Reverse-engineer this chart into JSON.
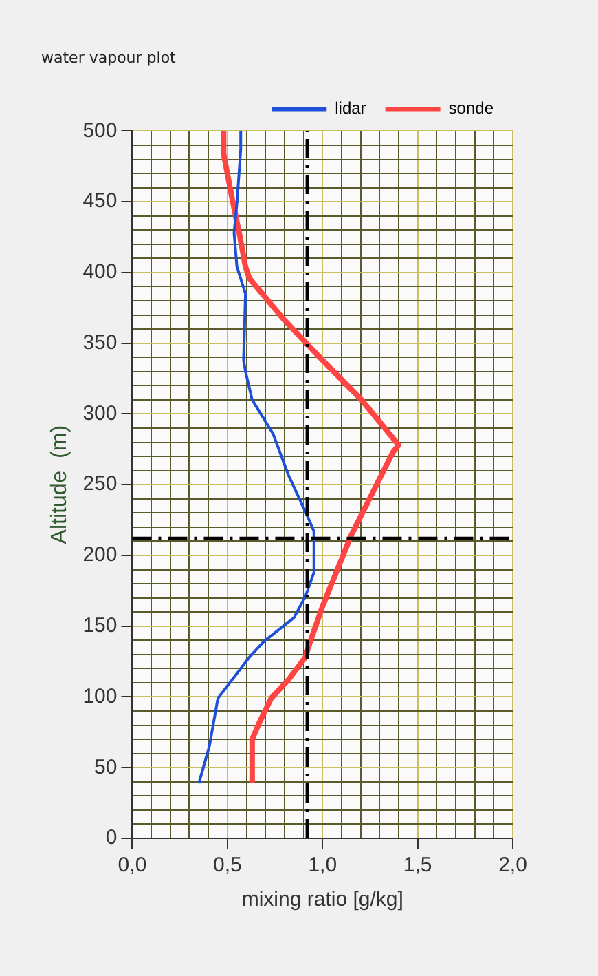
{
  "chart_data": {
    "type": "line",
    "title": "water vapour plot",
    "xlabel": "mixing ratio [g/kg]",
    "ylabel": "Altitude  (m)",
    "series": [
      {
        "name": "lidar",
        "color": "#1e4fd8",
        "x": [
          0.35,
          0.405,
          0.45,
          0.615,
          0.69,
          0.85,
          0.91,
          0.955,
          0.955,
          0.92,
          0.82,
          0.74,
          0.63,
          0.595,
          0.585,
          0.595,
          0.55,
          0.535,
          0.55,
          0.57,
          0.57
        ],
        "values": [
          39,
          65,
          99,
          128,
          139,
          156,
          171,
          188,
          217,
          228,
          257,
          286,
          310,
          330,
          338,
          385,
          404,
          428,
          449,
          487,
          500
        ]
      },
      {
        "name": "sonde",
        "color": "#ff4444",
        "x": [
          0.63,
          0.63,
          0.665,
          0.73,
          0.82,
          0.91,
          0.935,
          1.0,
          1.15,
          1.37,
          1.4,
          1.205,
          1.0,
          0.795,
          0.615,
          0.595,
          0.565,
          0.525,
          0.48,
          0.48
        ],
        "values": [
          39,
          70,
          81,
          99,
          112,
          128,
          139,
          164,
          214,
          273,
          278,
          310,
          338,
          367,
          396,
          404,
          426,
          452,
          484,
          500
        ]
      }
    ],
    "xlim": [
      0,
      2
    ],
    "xticks": [
      {
        "value": 0,
        "label": "0,0"
      },
      {
        "value": 0.1,
        "label": null
      },
      {
        "value": 0.2,
        "label": null
      },
      {
        "value": 0.3,
        "label": null
      },
      {
        "value": 0.4,
        "label": null
      },
      {
        "value": 0.5,
        "label": "0,5"
      },
      {
        "value": 0.6,
        "label": null
      },
      {
        "value": 0.7,
        "label": null
      },
      {
        "value": 0.8,
        "label": null
      },
      {
        "value": 0.9,
        "label": null
      },
      {
        "value": 1,
        "label": "1,0"
      },
      {
        "value": 1.1,
        "label": null
      },
      {
        "value": 1.2,
        "label": null
      },
      {
        "value": 1.3,
        "label": null
      },
      {
        "value": 1.4,
        "label": null
      },
      {
        "value": 1.5,
        "label": "1,5"
      },
      {
        "value": 1.6,
        "label": null
      },
      {
        "value": 1.7,
        "label": null
      },
      {
        "value": 1.8,
        "label": null
      },
      {
        "value": 1.9,
        "label": null
      },
      {
        "value": 2,
        "label": "2,0"
      }
    ],
    "ylim": [
      0,
      500
    ],
    "yticks": [
      0,
      {
        "value": 10,
        "label": null
      },
      {
        "value": 20,
        "label": null
      },
      {
        "value": 30,
        "label": null
      },
      {
        "value": 40,
        "label": null
      },
      50,
      {
        "value": 60,
        "label": null
      },
      {
        "value": 70,
        "label": null
      },
      {
        "value": 80,
        "label": null
      },
      {
        "value": 90,
        "label": null
      },
      100,
      {
        "value": 110,
        "label": null
      },
      {
        "value": 120,
        "label": null
      },
      {
        "value": 130,
        "label": null
      },
      {
        "value": 140,
        "label": null
      },
      150,
      {
        "value": 160,
        "label": null
      },
      {
        "value": 170,
        "label": null
      },
      {
        "value": 180,
        "label": null
      },
      {
        "value": 190,
        "label": null
      },
      200,
      {
        "value": 210,
        "label": null
      },
      {
        "value": 220,
        "label": null
      },
      {
        "value": 230,
        "label": null
      },
      {
        "value": 240,
        "label": null
      },
      250,
      {
        "value": 260,
        "label": null
      },
      {
        "value": 270,
        "label": null
      },
      {
        "value": 280,
        "label": null
      },
      {
        "value": 290,
        "label": null
      },
      300,
      {
        "value": 310,
        "label": null
      },
      {
        "value": 320,
        "label": null
      },
      {
        "value": 330,
        "label": null
      },
      {
        "value": 340,
        "label": null
      },
      350,
      {
        "value": 360,
        "label": null
      },
      {
        "value": 370,
        "label": null
      },
      {
        "value": 380,
        "label": null
      },
      {
        "value": 390,
        "label": null
      },
      400,
      {
        "value": 410,
        "label": null
      },
      {
        "value": 420,
        "label": null
      },
      {
        "value": 430,
        "label": null
      },
      {
        "value": 440,
        "label": null
      },
      450,
      {
        "value": 460,
        "label": null
      },
      {
        "value": 470,
        "label": null
      },
      {
        "value": 480,
        "label": null
      },
      {
        "value": 490,
        "label": null
      },
      500
    ],
    "ref_lines": [
      {
        "axis": "y",
        "value": 212,
        "color": "#000000",
        "line_style": "dashdot"
      },
      {
        "axis": "x",
        "value": 0.92,
        "color": "#000000",
        "line_style": "dashdot"
      }
    ],
    "grid": true,
    "legend": "top right",
    "marker": "none",
    "line_style": "solid"
  }
}
